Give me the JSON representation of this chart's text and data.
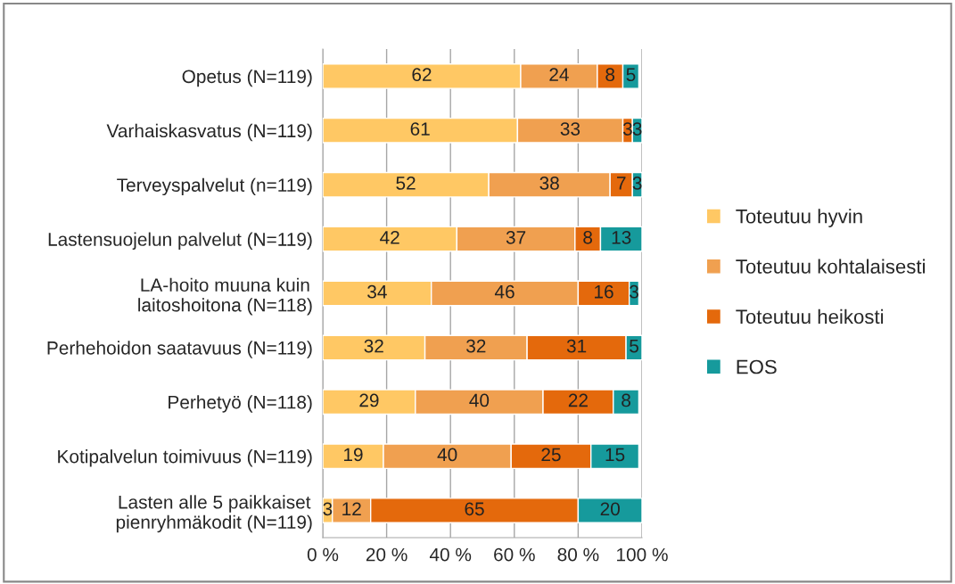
{
  "chart_data": {
    "type": "bar",
    "orientation": "horizontal",
    "stacked": true,
    "data_labels": true,
    "grid": "x",
    "legend": "right",
    "categories": [
      "Opetus (N=119)",
      "Varhaiskasvatus (N=119)",
      "Terveyspalvelut (n=119)",
      "Lastensuojelun palvelut (N=119)",
      "LA-hoito muuna kuin\nlaitoshoitona (N=118)",
      "Perhehoidon saatavuus (N=119)",
      "Perhetyö (N=118)",
      "Kotipalvelun toimivuus (N=119)",
      "Lasten alle 5 paikkaiset\npienryhmäkodit (N=119)"
    ],
    "series": [
      {
        "name": "Toteutuu hyvin",
        "color": "#ffc864",
        "values": [
          62,
          61,
          52,
          42,
          34,
          32,
          29,
          19,
          3
        ]
      },
      {
        "name": "Toteutuu kohtalaisesti",
        "color": "#f0a050",
        "values": [
          24,
          33,
          38,
          37,
          46,
          32,
          40,
          40,
          12
        ]
      },
      {
        "name": "Toteutuu heikosti",
        "color": "#e4690c",
        "values": [
          8,
          3,
          7,
          8,
          16,
          31,
          22,
          25,
          65
        ]
      },
      {
        "name": "EOS",
        "color": "#169a9c",
        "values": [
          5,
          3,
          3,
          13,
          3,
          5,
          8,
          15,
          20
        ]
      }
    ],
    "xlim": [
      0,
      100
    ],
    "xticks": [
      {
        "value": 0,
        "label": "0 %"
      },
      {
        "value": 20,
        "label": "20 %"
      },
      {
        "value": 40,
        "label": "40 %"
      },
      {
        "value": 60,
        "label": "60 %"
      },
      {
        "value": 80,
        "label": "80 %"
      },
      {
        "value": 100,
        "label": "100 %"
      }
    ]
  }
}
